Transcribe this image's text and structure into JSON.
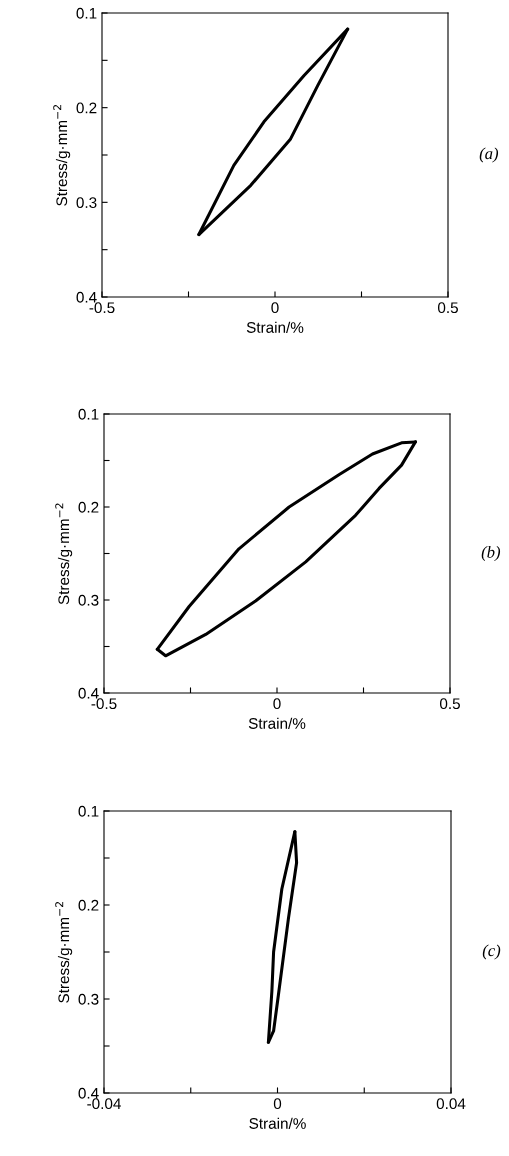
{
  "chart_data": [
    {
      "type": "line",
      "xlabel": "Strain/%",
      "ylabel": "Stress/g·mm$^{−2}$",
      "annotations": [
        "(a)"
      ],
      "marker": "none",
      "line_style": "solid",
      "grid": false,
      "legend": false,
      "xlim": [
        -0.5,
        0.5
      ],
      "xticks": [
        -0.5,
        {
          "value": -0.25,
          "label": null
        },
        0,
        {
          "value": 0.25,
          "label": null
        },
        0.5
      ],
      "ylim": [
        0.4,
        0.1
      ],
      "yticks": [
        0.1,
        {
          "value": 0.15,
          "label": null
        },
        0.2,
        {
          "value": 0.25,
          "label": null
        },
        0.3,
        {
          "value": 0.35,
          "label": null
        },
        0.4
      ],
      "series": [
        {
          "color": "#000000",
          "x": [
            -0.22,
            -0.119,
            -0.032,
            0.084,
            0.21
          ],
          "values": [
            0.334,
            0.261,
            0.215,
            0.166,
            0.117
          ]
        },
        {
          "color": "#000000",
          "x": [
            -0.22,
            -0.07,
            0.045,
            0.123,
            0.21
          ],
          "values": [
            0.334,
            0.282,
            0.233,
            0.177,
            0.117
          ]
        }
      ]
    },
    {
      "type": "line",
      "xlabel": "Strain/%",
      "ylabel": "Stress/g·mm$^{−2}$",
      "annotations": [
        "(b)"
      ],
      "marker": "none",
      "line_style": "solid",
      "grid": false,
      "legend": false,
      "xlim": [
        -0.5,
        0.5
      ],
      "xticks": [
        -0.5,
        {
          "value": -0.25,
          "label": null
        },
        0,
        {
          "value": 0.25,
          "label": null
        },
        0.5
      ],
      "ylim": [
        0.4,
        0.1
      ],
      "yticks": [
        0.1,
        {
          "value": 0.15,
          "label": null
        },
        0.2,
        {
          "value": 0.25,
          "label": null
        },
        0.3,
        {
          "value": 0.35,
          "label": null
        },
        0.4
      ],
      "series": [
        {
          "color": "#000000",
          "x": [
            -0.346,
            -0.254,
            -0.11,
            0.035,
            0.18,
            0.276,
            0.36,
            0.4
          ],
          "values": [
            0.353,
            0.307,
            0.245,
            0.2,
            0.165,
            0.143,
            0.131,
            0.13
          ]
        },
        {
          "color": "#000000",
          "x": [
            -0.346,
            -0.322,
            -0.206,
            -0.062,
            0.083,
            0.227,
            0.295,
            0.36,
            0.4
          ],
          "values": [
            0.353,
            0.36,
            0.337,
            0.301,
            0.259,
            0.209,
            0.18,
            0.155,
            0.13
          ]
        }
      ]
    },
    {
      "type": "line",
      "xlabel": "Strain/%",
      "ylabel": "Stress/g·mm$^{−2}$",
      "annotations": [
        "(c)"
      ],
      "marker": "none",
      "line_style": "solid",
      "grid": false,
      "legend": false,
      "xlim": [
        -0.04,
        0.04
      ],
      "xticks": [
        -0.04,
        {
          "value": -0.02,
          "label": null
        },
        0,
        {
          "value": 0.02,
          "label": null
        },
        0.04
      ],
      "ylim": [
        0.4,
        0.1
      ],
      "yticks": [
        0.1,
        {
          "value": 0.15,
          "label": null
        },
        0.2,
        {
          "value": 0.25,
          "label": null
        },
        0.3,
        {
          "value": 0.35,
          "label": null
        },
        0.4
      ],
      "series": [
        {
          "color": "#000000",
          "x": [
            -0.0021,
            -0.0013,
            -0.0009,
            0.001,
            0.004
          ],
          "values": [
            0.346,
            0.292,
            0.25,
            0.183,
            0.122
          ]
        },
        {
          "color": "#000000",
          "x": [
            -0.0021,
            -0.0009,
            0.0002,
            0.0025,
            0.0044,
            0.004
          ],
          "values": [
            0.346,
            0.334,
            0.296,
            0.215,
            0.155,
            0.122
          ]
        }
      ]
    }
  ]
}
